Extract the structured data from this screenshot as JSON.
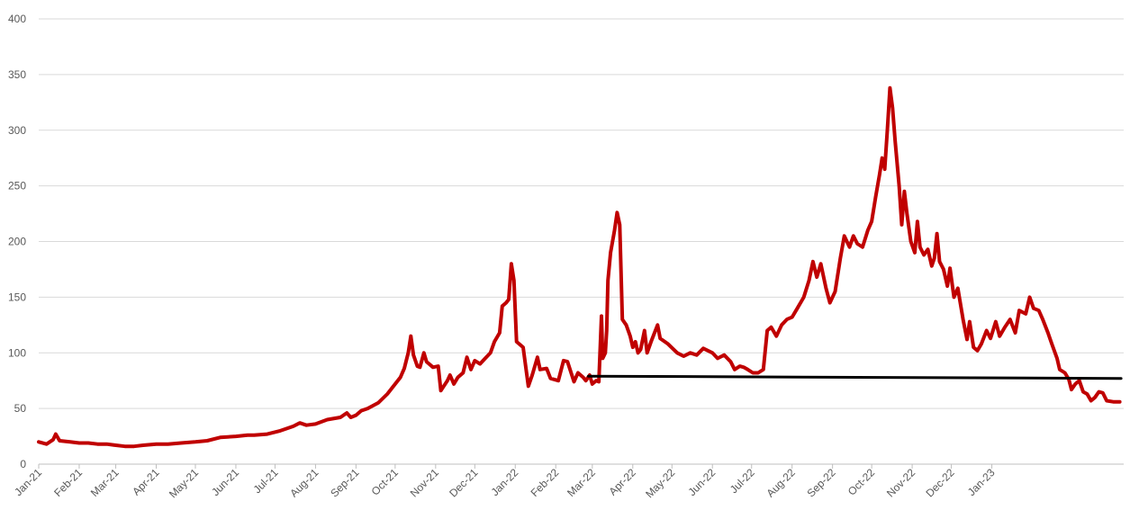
{
  "chart_data": {
    "type": "line",
    "title": "",
    "xlabel": "",
    "ylabel": "",
    "ylim": [
      0,
      400
    ],
    "yticks": [
      0,
      50,
      100,
      150,
      200,
      250,
      300,
      350,
      400
    ],
    "grid": true,
    "legend": "none",
    "x_tick_labels": [
      "Jan-21",
      "Feb-21",
      "Mar-21",
      "Apr-21",
      "May-21",
      "Jun-21",
      "Jul-21",
      "Aug-21",
      "Sep-21",
      "Oct-21",
      "Nov-21",
      "Dec-21",
      "Jan-22",
      "Feb-22",
      "Mar-22",
      "Apr-22",
      "May-22",
      "Jun-22",
      "Jul-22",
      "Aug-22",
      "Sep-22",
      "Oct-22",
      "Nov-22",
      "Dec-22",
      "Jan-23"
    ],
    "series": [
      {
        "color": "#c00000",
        "points": [
          [
            "2021-01-01",
            20
          ],
          [
            "2021-01-07",
            18
          ],
          [
            "2021-01-12",
            22
          ],
          [
            "2021-01-14",
            27
          ],
          [
            "2021-01-17",
            21
          ],
          [
            "2021-01-25",
            20
          ],
          [
            "2021-02-01",
            19
          ],
          [
            "2021-02-08",
            19
          ],
          [
            "2021-02-15",
            18
          ],
          [
            "2021-02-22",
            18
          ],
          [
            "2021-03-01",
            17
          ],
          [
            "2021-03-08",
            16
          ],
          [
            "2021-03-15",
            16
          ],
          [
            "2021-03-22",
            17
          ],
          [
            "2021-04-01",
            18
          ],
          [
            "2021-04-10",
            18
          ],
          [
            "2021-04-20",
            19
          ],
          [
            "2021-05-01",
            20
          ],
          [
            "2021-05-10",
            21
          ],
          [
            "2021-05-20",
            24
          ],
          [
            "2021-06-01",
            25
          ],
          [
            "2021-06-10",
            26
          ],
          [
            "2021-06-15",
            26
          ],
          [
            "2021-06-25",
            27
          ],
          [
            "2021-07-05",
            30
          ],
          [
            "2021-07-15",
            34
          ],
          [
            "2021-07-20",
            37
          ],
          [
            "2021-07-25",
            35
          ],
          [
            "2021-08-01",
            36
          ],
          [
            "2021-08-10",
            40
          ],
          [
            "2021-08-20",
            42
          ],
          [
            "2021-08-25",
            46
          ],
          [
            "2021-08-28",
            42
          ],
          [
            "2021-09-01",
            44
          ],
          [
            "2021-09-05",
            48
          ],
          [
            "2021-09-10",
            50
          ],
          [
            "2021-09-18",
            55
          ],
          [
            "2021-09-25",
            63
          ],
          [
            "2021-10-01",
            72
          ],
          [
            "2021-10-05",
            78
          ],
          [
            "2021-10-08",
            86
          ],
          [
            "2021-10-11",
            100
          ],
          [
            "2021-10-13",
            115
          ],
          [
            "2021-10-15",
            98
          ],
          [
            "2021-10-18",
            88
          ],
          [
            "2021-10-20",
            87
          ],
          [
            "2021-10-23",
            100
          ],
          [
            "2021-10-25",
            92
          ],
          [
            "2021-10-30",
            87
          ],
          [
            "2021-11-03",
            88
          ],
          [
            "2021-11-05",
            66
          ],
          [
            "2021-11-10",
            75
          ],
          [
            "2021-11-12",
            80
          ],
          [
            "2021-11-15",
            72
          ],
          [
            "2021-11-18",
            78
          ],
          [
            "2021-11-22",
            82
          ],
          [
            "2021-11-25",
            96
          ],
          [
            "2021-11-28",
            85
          ],
          [
            "2021-12-01",
            93
          ],
          [
            "2021-12-05",
            90
          ],
          [
            "2021-12-09",
            95
          ],
          [
            "2021-12-13",
            100
          ],
          [
            "2021-12-16",
            110
          ],
          [
            "2021-12-20",
            118
          ],
          [
            "2021-12-22",
            142
          ],
          [
            "2021-12-25",
            145
          ],
          [
            "2021-12-27",
            148
          ],
          [
            "2021-12-29",
            180
          ],
          [
            "2021-12-31",
            165
          ],
          [
            "2022-01-02",
            110
          ],
          [
            "2022-01-07",
            105
          ],
          [
            "2022-01-11",
            70
          ],
          [
            "2022-01-14",
            80
          ],
          [
            "2022-01-18",
            96
          ],
          [
            "2022-01-20",
            85
          ],
          [
            "2022-01-25",
            86
          ],
          [
            "2022-01-28",
            77
          ],
          [
            "2022-02-03",
            75
          ],
          [
            "2022-02-07",
            93
          ],
          [
            "2022-02-10",
            92
          ],
          [
            "2022-02-15",
            74
          ],
          [
            "2022-02-18",
            82
          ],
          [
            "2022-02-22",
            78
          ],
          [
            "2022-02-24",
            75
          ],
          [
            "2022-02-27",
            80
          ],
          [
            "2022-03-01",
            72
          ],
          [
            "2022-03-04",
            75
          ],
          [
            "2022-03-06",
            74
          ],
          [
            "2022-03-08",
            133
          ],
          [
            "2022-03-09",
            95
          ],
          [
            "2022-03-11",
            100
          ],
          [
            "2022-03-12",
            120
          ],
          [
            "2022-03-13",
            165
          ],
          [
            "2022-03-15",
            190
          ],
          [
            "2022-03-18",
            210
          ],
          [
            "2022-03-20",
            226
          ],
          [
            "2022-03-22",
            215
          ],
          [
            "2022-03-24",
            130
          ],
          [
            "2022-03-27",
            125
          ],
          [
            "2022-03-30",
            115
          ],
          [
            "2022-04-01",
            105
          ],
          [
            "2022-04-03",
            110
          ],
          [
            "2022-04-05",
            100
          ],
          [
            "2022-04-07",
            103
          ],
          [
            "2022-04-10",
            120
          ],
          [
            "2022-04-12",
            100
          ],
          [
            "2022-04-15",
            110
          ],
          [
            "2022-04-20",
            125
          ],
          [
            "2022-04-22",
            113
          ],
          [
            "2022-04-28",
            108
          ],
          [
            "2022-05-05",
            100
          ],
          [
            "2022-05-10",
            97
          ],
          [
            "2022-05-15",
            100
          ],
          [
            "2022-05-20",
            98
          ],
          [
            "2022-05-25",
            104
          ],
          [
            "2022-06-01",
            100
          ],
          [
            "2022-06-05",
            95
          ],
          [
            "2022-06-10",
            98
          ],
          [
            "2022-06-15",
            92
          ],
          [
            "2022-06-18",
            85
          ],
          [
            "2022-06-22",
            88
          ],
          [
            "2022-06-25",
            87
          ],
          [
            "2022-06-28",
            85
          ],
          [
            "2022-07-02",
            82
          ],
          [
            "2022-07-06",
            82
          ],
          [
            "2022-07-10",
            85
          ],
          [
            "2022-07-13",
            120
          ],
          [
            "2022-07-16",
            123
          ],
          [
            "2022-07-20",
            115
          ],
          [
            "2022-07-24",
            125
          ],
          [
            "2022-07-28",
            130
          ],
          [
            "2022-08-01",
            132
          ],
          [
            "2022-08-05",
            140
          ],
          [
            "2022-08-10",
            150
          ],
          [
            "2022-08-14",
            165
          ],
          [
            "2022-08-17",
            182
          ],
          [
            "2022-08-20",
            168
          ],
          [
            "2022-08-23",
            180
          ],
          [
            "2022-08-27",
            158
          ],
          [
            "2022-08-30",
            145
          ],
          [
            "2022-09-03",
            155
          ],
          [
            "2022-09-07",
            185
          ],
          [
            "2022-09-10",
            205
          ],
          [
            "2022-09-14",
            195
          ],
          [
            "2022-09-17",
            205
          ],
          [
            "2022-09-20",
            198
          ],
          [
            "2022-09-24",
            195
          ],
          [
            "2022-09-28",
            210
          ],
          [
            "2022-10-01",
            218
          ],
          [
            "2022-10-04",
            240
          ],
          [
            "2022-10-07",
            260
          ],
          [
            "2022-10-09",
            275
          ],
          [
            "2022-10-11",
            265
          ],
          [
            "2022-10-13",
            300
          ],
          [
            "2022-10-15",
            338
          ],
          [
            "2022-10-17",
            320
          ],
          [
            "2022-10-19",
            290
          ],
          [
            "2022-10-22",
            250
          ],
          [
            "2022-10-24",
            215
          ],
          [
            "2022-10-26",
            245
          ],
          [
            "2022-10-28",
            225
          ],
          [
            "2022-10-31",
            200
          ],
          [
            "2022-11-03",
            190
          ],
          [
            "2022-11-05",
            218
          ],
          [
            "2022-11-07",
            195
          ],
          [
            "2022-11-10",
            188
          ],
          [
            "2022-11-13",
            193
          ],
          [
            "2022-11-16",
            178
          ],
          [
            "2022-11-18",
            185
          ],
          [
            "2022-11-20",
            207
          ],
          [
            "2022-11-22",
            182
          ],
          [
            "2022-11-25",
            175
          ],
          [
            "2022-11-28",
            160
          ],
          [
            "2022-11-30",
            176
          ],
          [
            "2022-12-03",
            150
          ],
          [
            "2022-12-06",
            158
          ],
          [
            "2022-12-10",
            130
          ],
          [
            "2022-12-13",
            112
          ],
          [
            "2022-12-15",
            128
          ],
          [
            "2022-12-18",
            105
          ],
          [
            "2022-12-21",
            102
          ],
          [
            "2022-12-24",
            108
          ],
          [
            "2022-12-28",
            120
          ],
          [
            "2022-12-31",
            113
          ],
          [
            "2023-01-04",
            128
          ],
          [
            "2023-01-07",
            115
          ],
          [
            "2023-01-11",
            123
          ],
          [
            "2023-01-15",
            130
          ],
          [
            "2023-01-19",
            118
          ],
          [
            "2023-01-22",
            138
          ],
          [
            "2023-01-27",
            135
          ],
          [
            "2023-01-30",
            150
          ],
          [
            "2023-02-02",
            140
          ],
          [
            "2023-02-06",
            138
          ],
          [
            "2023-02-09",
            130
          ],
          [
            "2023-02-13",
            118
          ],
          [
            "2023-02-16",
            108
          ],
          [
            "2023-02-20",
            95
          ],
          [
            "2023-02-22",
            85
          ],
          [
            "2023-02-26",
            82
          ],
          [
            "2023-03-01",
            76
          ],
          [
            "2023-03-03",
            67
          ],
          [
            "2023-03-06",
            72
          ],
          [
            "2023-03-09",
            75
          ],
          [
            "2023-03-12",
            65
          ],
          [
            "2023-03-15",
            63
          ],
          [
            "2023-03-18",
            57
          ],
          [
            "2023-03-21",
            60
          ],
          [
            "2023-03-24",
            65
          ],
          [
            "2023-03-27",
            64
          ],
          [
            "2023-03-30",
            57
          ],
          [
            "2023-04-04",
            56
          ],
          [
            "2023-04-09",
            56
          ]
        ]
      },
      {
        "color": "#000000",
        "points": [
          [
            "2022-02-26",
            79
          ],
          [
            "2023-04-10",
            77
          ]
        ]
      }
    ]
  }
}
